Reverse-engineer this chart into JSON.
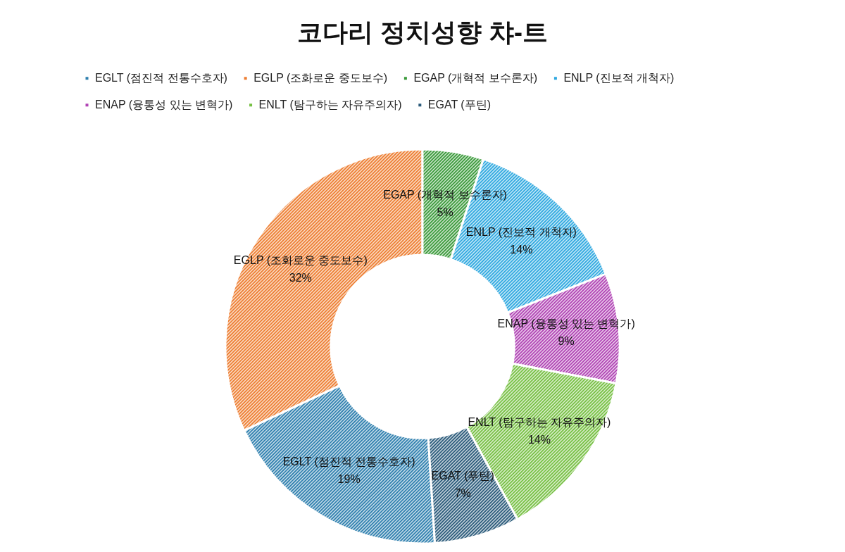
{
  "chart_data": {
    "type": "donut",
    "title": "코다리 정치성향 챠-트",
    "categories": [
      "EGLT (점진적 전통수호자)",
      "EGLP (조화로운 중도보수)",
      "EGAP (개혁적 보수론자)",
      "ENLP (진보적 개척자)",
      "ENAP (융통성 있는 변혁가)",
      "ENLT (탐구하는 자유주의자)",
      "EGAT (푸틴)"
    ],
    "values": [
      19,
      32,
      5,
      14,
      9,
      14,
      7
    ],
    "value_labels": [
      "19%",
      "32%",
      "5%",
      "14%",
      "9%",
      "14%",
      "7%"
    ],
    "colors": [
      "#2e7fae",
      "#ed7d31",
      "#3a9a3a",
      "#2ea8e0",
      "#b043b4",
      "#76c043",
      "#2a5a7a"
    ],
    "legend": "top"
  }
}
